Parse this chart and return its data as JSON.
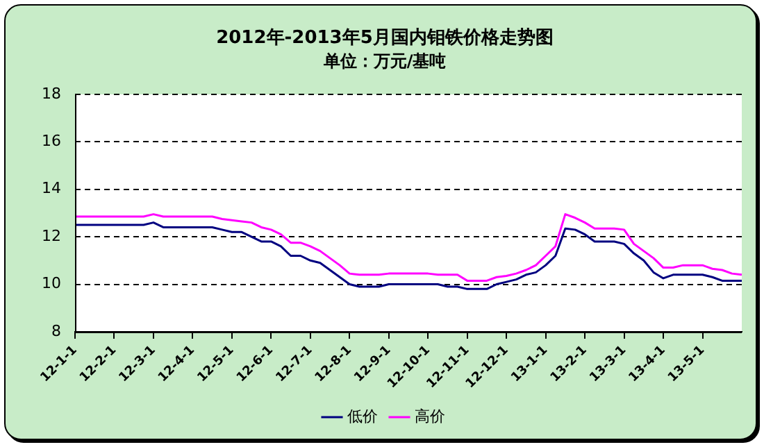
{
  "chart_data": {
    "type": "line",
    "title": "2012年-2013年5月国内钼铁价格走势图",
    "subtitle": "单位：万元/基吨",
    "categories": [
      "12-1-1",
      null,
      null,
      null,
      "12-2-1",
      null,
      null,
      null,
      "12-3-1",
      null,
      null,
      null,
      "12-4-1",
      null,
      null,
      null,
      "12-5-1",
      null,
      null,
      null,
      "12-6-1",
      null,
      null,
      null,
      "12-7-1",
      null,
      null,
      null,
      "12-8-1",
      null,
      null,
      null,
      "12-9-1",
      null,
      null,
      null,
      "12-10-1",
      null,
      null,
      null,
      "12-11-1",
      null,
      null,
      null,
      "12-12-1",
      null,
      null,
      null,
      "13-1-1",
      null,
      null,
      null,
      "13-2-1",
      null,
      null,
      null,
      "13-3-1",
      null,
      null,
      null,
      "13-4-1",
      null,
      null,
      null,
      "13-5-1",
      null,
      null,
      null,
      null
    ],
    "series": [
      {
        "name": "低价",
        "color": "#000080",
        "values": [
          12.5,
          12.5,
          12.5,
          12.5,
          12.5,
          12.5,
          12.5,
          12.5,
          12.6,
          12.4,
          12.4,
          12.4,
          12.4,
          12.4,
          12.4,
          12.3,
          12.2,
          12.2,
          12.0,
          11.8,
          11.8,
          11.6,
          11.2,
          11.2,
          11.0,
          10.9,
          10.6,
          10.3,
          10.0,
          9.9,
          9.9,
          9.9,
          10.0,
          10.0,
          10.0,
          10.0,
          10.0,
          10.0,
          9.9,
          9.9,
          9.8,
          9.8,
          9.8,
          10.0,
          10.1,
          10.2,
          10.4,
          10.5,
          10.8,
          11.2,
          12.35,
          12.3,
          12.1,
          11.8,
          11.8,
          11.8,
          11.7,
          11.3,
          11.0,
          10.5,
          10.25,
          10.4,
          10.4,
          10.4,
          10.4,
          10.3,
          10.15,
          10.15,
          10.15
        ]
      },
      {
        "name": "高价",
        "color": "#ff00ff",
        "values": [
          12.85,
          12.85,
          12.85,
          12.85,
          12.85,
          12.85,
          12.85,
          12.85,
          12.95,
          12.85,
          12.85,
          12.85,
          12.85,
          12.85,
          12.85,
          12.75,
          12.7,
          12.65,
          12.6,
          12.4,
          12.3,
          12.1,
          11.75,
          11.75,
          11.6,
          11.4,
          11.1,
          10.8,
          10.45,
          10.4,
          10.4,
          10.4,
          10.45,
          10.45,
          10.45,
          10.45,
          10.45,
          10.4,
          10.4,
          10.4,
          10.15,
          10.15,
          10.15,
          10.3,
          10.35,
          10.45,
          10.6,
          10.8,
          11.2,
          11.6,
          12.95,
          12.8,
          12.6,
          12.35,
          12.35,
          12.35,
          12.3,
          11.7,
          11.4,
          11.1,
          10.7,
          10.7,
          10.8,
          10.8,
          10.8,
          10.65,
          10.6,
          10.45,
          10.4
        ]
      }
    ],
    "ylim": [
      8,
      18
    ],
    "yticks": [
      8,
      10,
      12,
      14,
      16,
      18
    ],
    "grid": "y",
    "legend": "bottom",
    "marker": "none",
    "line_style": "solid"
  }
}
